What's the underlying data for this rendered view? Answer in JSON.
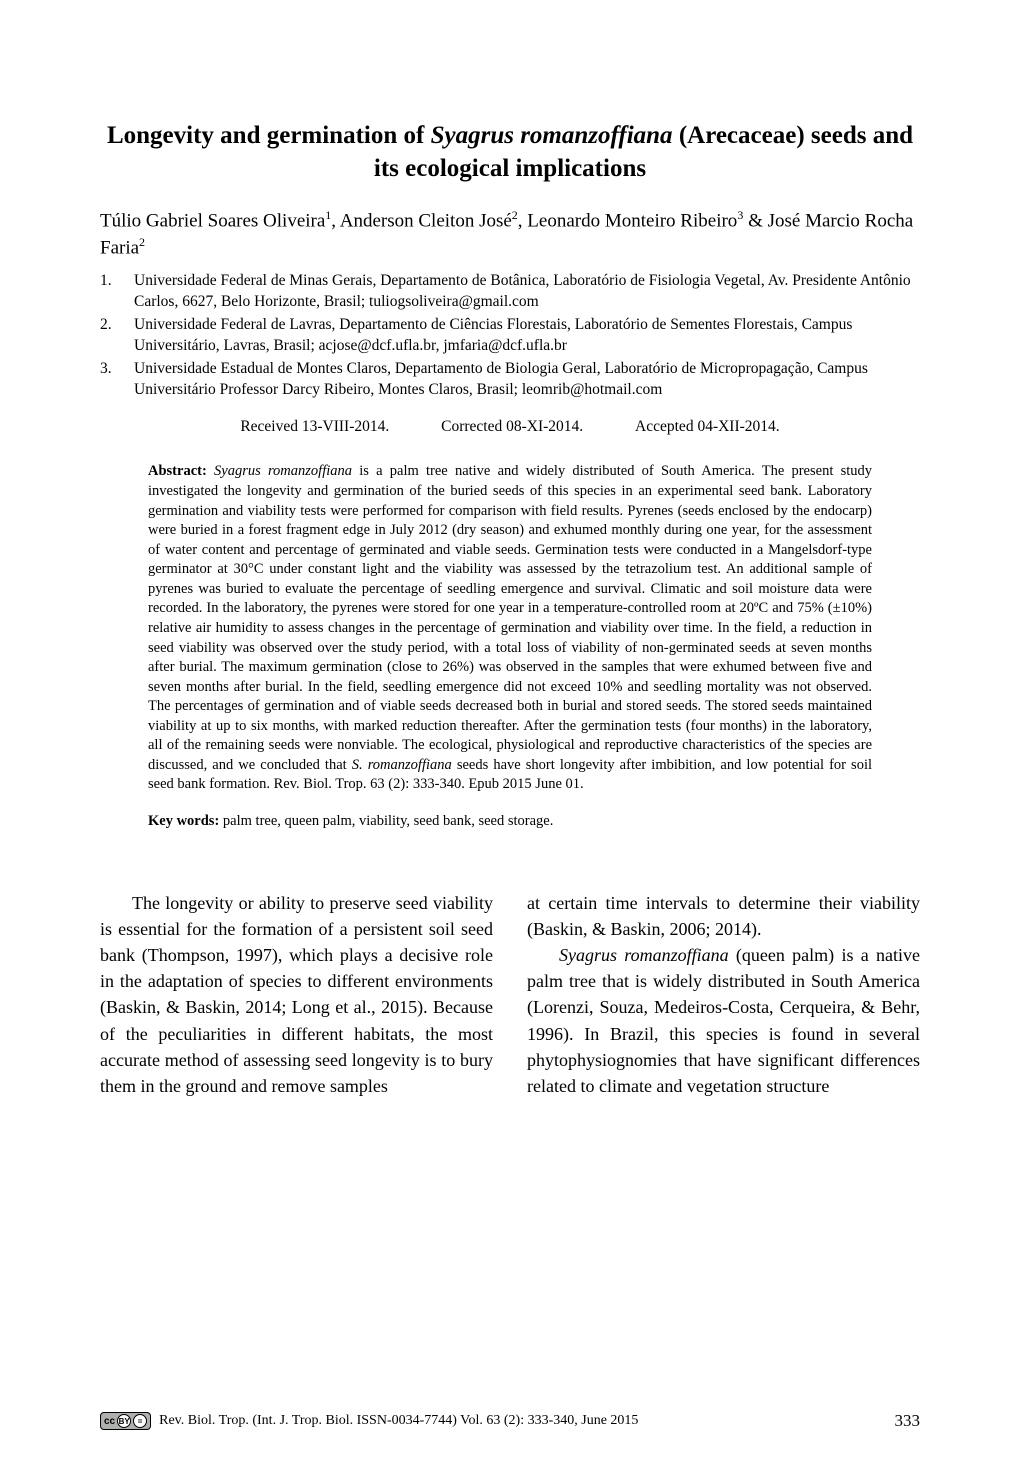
{
  "title": {
    "pre": "Longevity and germination of ",
    "italic": "Syagrus romanzoffiana",
    "post": " (Arecaceae) seeds and its ecological implications"
  },
  "authors": {
    "a1": "Túlio Gabriel Soares Oliveira",
    "s1": "1",
    "a2": ", Anderson Cleiton José",
    "s2": "2",
    "a3": ", Leonardo Monteiro Ribeiro",
    "s3": "3",
    "amp": " & ",
    "a4": "José Marcio Rocha Faria",
    "s4": "2"
  },
  "affiliations": [
    {
      "num": "1.",
      "text": "Universidade Federal de Minas Gerais, Departamento de Botânica, Laboratório de Fisiologia Vegetal, Av. Presidente Antônio Carlos, 6627, Belo Horizonte, Brasil; tuliogsoliveira@gmail.com"
    },
    {
      "num": "2.",
      "text": "Universidade Federal de Lavras, Departamento de Ciências Florestais, Laboratório de Sementes Florestais, Campus Universitário, Lavras, Brasil; acjose@dcf.ufla.br, jmfaria@dcf.ufla.br"
    },
    {
      "num": "3.",
      "text": "Universidade Estadual de Montes Claros, Departamento de Biologia Geral, Laboratório de Micropropagação, Campus Universitário Professor Darcy Ribeiro, Montes Claros, Brasil; leomrib@hotmail.com"
    }
  ],
  "dates": {
    "received": "Received 13-VIII-2014.",
    "corrected": "Corrected 08-XI-2014.",
    "accepted": "Accepted 04-XII-2014."
  },
  "abstract": {
    "label": "Abstract: ",
    "ital1": "Syagrus romanzoffiana",
    "t1": " is a palm tree native and widely distributed of South America. The present study investigated the longevity and germination of the buried seeds of this species in an experimental seed bank. Laboratory germination and viability tests were performed for comparison with field results. Pyrenes (seeds enclosed by the endocarp) were buried in a forest fragment edge in July 2012 (dry season) and exhumed monthly during one year, for the assessment of water content and percentage of germinated and viable seeds. Germination tests were conducted in a Mangelsdorf-type germinator at 30°C under constant light and the viability was assessed by the tetrazolium test. An additional sample of pyrenes was buried to evaluate the percentage of seedling emergence and survival. Climatic and soil moisture data were recorded. In the laboratory, the pyrenes were stored for one year in a temperature-controlled room at 20ºC and 75% (±10%) relative air humidity to assess changes in the percentage of germination and viability over time. In the field, a reduction in seed viability was observed over the study period, with a total loss of viability of non-germinated seeds at seven months after burial. The maximum germination (close to 26%) was observed in the samples that were exhumed between five and seven months after burial. In the field, seedling emergence did not exceed 10% and seedling mortality was not observed. The percentages of germination and of viable seeds decreased both in burial and stored seeds. The stored seeds maintained viability at up to six months, with marked reduction thereafter. After the germination tests (four months) in the laboratory, all of the remaining seeds were nonviable. The ecological, physiological and reproductive characteristics of the species are discussed, and we concluded that ",
    "ital2": "S. romanzoffiana",
    "t2": " seeds have short longevity after imbibition, and low potential for soil seed bank formation. Rev. Biol. Trop. 63 (2): 333-340. Epub 2015 June 01."
  },
  "keywords": {
    "label": "Key words: ",
    "text": "palm tree, queen palm, viability, seed bank, seed storage."
  },
  "body": {
    "col1": "The longevity or ability to preserve seed viability is essential for the formation of a persistent soil seed bank (Thompson, 1997), which plays a decisive role in the adaptation of species to different environments (Baskin, & Baskin, 2014; Long et al., 2015). Because of the peculiarities in different habitats, the most accurate method of assessing seed longevity is to bury them in the ground and remove samples",
    "col2_p1": "at certain time intervals to determine their viability (Baskin, & Baskin, 2006; 2014).",
    "col2_p2_ital": "Syagrus romanzoffiana",
    "col2_p2_rest": " (queen palm) is a native palm tree that is widely distributed in South America (Lorenzi, Souza, Medeiros-Costa, Cerqueira, & Behr, 1996). In Brazil, this species is found in several phytophysiognomies that have significant differences related to climate and vegetation structure"
  },
  "footer": {
    "cc": "cc",
    "journal": "Rev. Biol. Trop. (Int. J. Trop. Biol. ISSN-0034-7744) Vol. 63 (2): 333-340, June 2015",
    "page": "333"
  }
}
